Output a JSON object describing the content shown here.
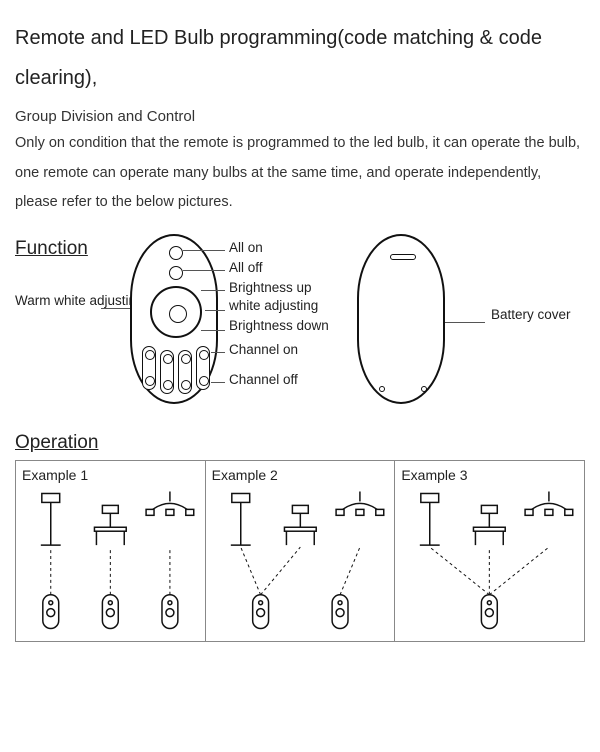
{
  "title": "Remote and LED Bulb programming(code matching & code clearing),",
  "subtitle": "Group Division and Control",
  "body": "Only on condition that the remote is programmed to the led bulb, it can operate the bulb,\none remote can operate many bulbs at the same time, and operate independently, please refer to the below pictures.",
  "function": {
    "heading": "Function",
    "labels_right": [
      "All on",
      "All off",
      "Brightness up",
      "white adjusting",
      "Brightness down",
      "Channel on",
      "Channel off"
    ],
    "label_left": "Warm white adjusting",
    "label_back": "Battery cover",
    "colors": {
      "line": "#111111",
      "text": "#222222",
      "bg": "#ffffff"
    }
  },
  "operation": {
    "heading": "Operation",
    "examples": [
      {
        "label": "Example 1",
        "remotes": 3,
        "pairs": [
          [
            0,
            0
          ],
          [
            1,
            1
          ],
          [
            2,
            2
          ]
        ]
      },
      {
        "label": "Example 2",
        "remotes": 2,
        "pairs": [
          [
            0,
            0
          ],
          [
            0,
            1
          ],
          [
            1,
            2
          ]
        ]
      },
      {
        "label": "Example 3",
        "remotes": 1,
        "pairs": [
          [
            0,
            0
          ],
          [
            0,
            1
          ],
          [
            0,
            2
          ]
        ]
      }
    ],
    "style": {
      "border_color": "#888888",
      "stroke": "#111111",
      "dash": "3 3",
      "font_size": 14
    }
  }
}
